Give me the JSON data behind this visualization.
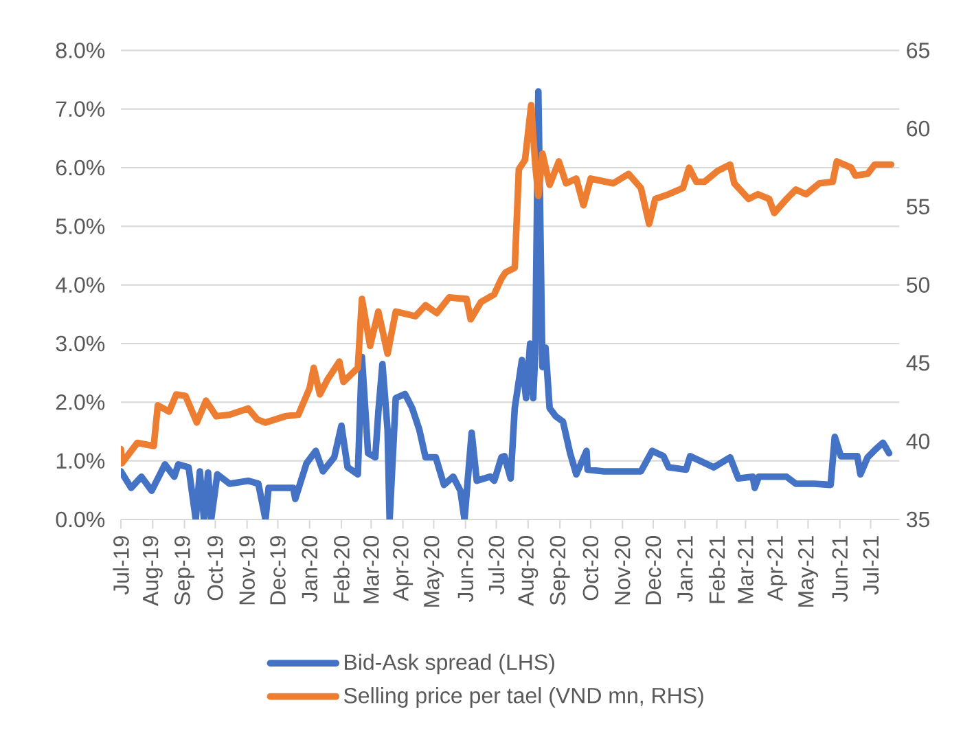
{
  "chart_data": {
    "type": "line",
    "xlim": [
      "2019-07-01",
      "2021-07-29"
    ],
    "xticks": [
      {
        "value": "2019-07-01",
        "label": "Jul-19"
      },
      {
        "value": "2019-08-01",
        "label": "Aug-19"
      },
      {
        "value": "2019-09-01",
        "label": "Sep-19"
      },
      {
        "value": "2019-10-01",
        "label": "Oct-19"
      },
      {
        "value": "2019-11-01",
        "label": "Nov-19"
      },
      {
        "value": "2019-12-01",
        "label": "Dec-19"
      },
      {
        "value": "2020-01-01",
        "label": "Jan-20"
      },
      {
        "value": "2020-02-01",
        "label": "Feb-20"
      },
      {
        "value": "2020-03-01",
        "label": "Mar-20"
      },
      {
        "value": "2020-04-01",
        "label": "Apr-20"
      },
      {
        "value": "2020-05-01",
        "label": "May-20"
      },
      {
        "value": "2020-06-01",
        "label": "Jun-20"
      },
      {
        "value": "2020-07-01",
        "label": "Jul-20"
      },
      {
        "value": "2020-08-01",
        "label": "Aug-20"
      },
      {
        "value": "2020-09-01",
        "label": "Sep-20"
      },
      {
        "value": "2020-10-01",
        "label": "Oct-20"
      },
      {
        "value": "2020-11-01",
        "label": "Nov-20"
      },
      {
        "value": "2020-12-01",
        "label": "Dec-20"
      },
      {
        "value": "2021-01-01",
        "label": "Jan-21"
      },
      {
        "value": "2021-02-01",
        "label": "Feb-21"
      },
      {
        "value": "2021-03-01",
        "label": "Mar-21"
      },
      {
        "value": "2021-04-01",
        "label": "Apr-21"
      },
      {
        "value": "2021-05-01",
        "label": "May-21"
      },
      {
        "value": "2021-06-01",
        "label": "Jun-21"
      },
      {
        "value": "2021-07-01",
        "label": "Jul-21"
      }
    ],
    "ylim": [
      0,
      8
    ],
    "yticks": [
      {
        "value": 0,
        "label": "0.0%"
      },
      {
        "value": 1,
        "label": "1.0%"
      },
      {
        "value": 2,
        "label": "2.0%"
      },
      {
        "value": 3,
        "label": "3.0%"
      },
      {
        "value": 4,
        "label": "4.0%"
      },
      {
        "value": 5,
        "label": "5.0%"
      },
      {
        "value": 6,
        "label": "6.0%"
      },
      {
        "value": 7,
        "label": "7.0%"
      },
      {
        "value": 8,
        "label": "8.0%"
      }
    ],
    "y2lim": [
      35,
      65
    ],
    "y2ticks": [
      35,
      40,
      45,
      50,
      55,
      60,
      65
    ],
    "grid": "y",
    "legend": "bottom",
    "series": [
      {
        "name": "Bid-Ask spread (LHS)",
        "color": "#4472c4",
        "axis": "y",
        "x": [
          "2019-07-01",
          "2019-07-11",
          "2019-07-21",
          "2019-07-31",
          "2019-08-13",
          "2019-08-22",
          "2019-08-26",
          "2019-09-05",
          "2019-09-12",
          "2019-09-16",
          "2019-09-20",
          "2019-09-24",
          "2019-09-27",
          "2019-10-03",
          "2019-10-15",
          "2019-11-02",
          "2019-11-12",
          "2019-11-19",
          "2019-11-22",
          "2019-12-16",
          "2019-12-18",
          "2019-12-29",
          "2020-01-07",
          "2020-01-14",
          "2020-01-25",
          "2020-02-01",
          "2020-02-07",
          "2020-02-17",
          "2020-02-21",
          "2020-02-27",
          "2020-03-05",
          "2020-03-08",
          "2020-03-12",
          "2020-03-17",
          "2020-03-19",
          "2020-03-25",
          "2020-04-03",
          "2020-04-10",
          "2020-04-17",
          "2020-04-23",
          "2020-05-03",
          "2020-05-11",
          "2020-05-20",
          "2020-05-27",
          "2020-05-31",
          "2020-06-07",
          "2020-06-12",
          "2020-06-25",
          "2020-06-29",
          "2020-07-06",
          "2020-07-09",
          "2020-07-15",
          "2020-07-19",
          "2020-07-26",
          "2020-07-30",
          "2020-08-03",
          "2020-08-06",
          "2020-08-08",
          "2020-08-11",
          "2020-08-15",
          "2020-08-18",
          "2020-08-22",
          "2020-08-28",
          "2020-09-04",
          "2020-09-11",
          "2020-09-17",
          "2020-09-27",
          "2020-09-28",
          "2020-10-14",
          "2020-10-23",
          "2020-11-19",
          "2020-11-30",
          "2020-12-11",
          "2020-12-16",
          "2021-01-02",
          "2021-01-06",
          "2021-01-29",
          "2021-02-14",
          "2021-02-22",
          "2021-03-08",
          "2021-03-10",
          "2021-03-14",
          "2021-04-10",
          "2021-04-19",
          "2021-05-07",
          "2021-05-23",
          "2021-05-27",
          "2021-06-02",
          "2021-06-18",
          "2021-06-21",
          "2021-06-28",
          "2021-07-06",
          "2021-07-13",
          "2021-07-19"
        ],
        "values": [
          0.82,
          0.54,
          0.73,
          0.49,
          0.94,
          0.73,
          0.94,
          0.89,
          0,
          0.82,
          0,
          0.8,
          0,
          0.77,
          0.61,
          0.66,
          0.61,
          0,
          0.54,
          0.54,
          0.35,
          0.96,
          1.17,
          0.82,
          1.06,
          1.6,
          0.89,
          0.77,
          2.77,
          1.13,
          1.06,
          1.83,
          2.65,
          1.53,
          0,
          2.07,
          2.14,
          1.9,
          1.53,
          1.06,
          1.06,
          0.59,
          0.73,
          0.49,
          0,
          1.48,
          0.66,
          0.73,
          0.66,
          1.06,
          1.08,
          0.7,
          1.9,
          2.72,
          2.07,
          3.0,
          2.07,
          2.84,
          7.3,
          2.6,
          2.93,
          1.9,
          1.76,
          1.67,
          1.13,
          0.77,
          1.17,
          0.85,
          0.82,
          0.82,
          0.82,
          1.17,
          1.08,
          0.89,
          0.85,
          1.08,
          0.89,
          1.06,
          0.7,
          0.73,
          0.54,
          0.73,
          0.73,
          0.61,
          0.61,
          0.59,
          1.41,
          1.08,
          1.08,
          0.77,
          1.06,
          1.2,
          1.31,
          1.13
        ]
      },
      {
        "name": "Selling price per tael (VND mn, RHS)",
        "color": "#ed7d31",
        "axis": "y2",
        "x": [
          "2019-07-01",
          "2019-07-02",
          "2019-07-17",
          "2019-08-02",
          "2019-08-06",
          "2019-08-17",
          "2019-08-24",
          "2019-09-02",
          "2019-09-13",
          "2019-09-22",
          "2019-10-02",
          "2019-10-15",
          "2019-11-02",
          "2019-11-11",
          "2019-11-19",
          "2019-12-08",
          "2019-12-21",
          "2020-01-01",
          "2020-01-05",
          "2020-01-11",
          "2020-01-18",
          "2020-01-30",
          "2020-02-03",
          "2020-02-17",
          "2020-02-21",
          "2020-02-29",
          "2020-03-08",
          "2020-03-17",
          "2020-03-25",
          "2020-04-13",
          "2020-04-23",
          "2020-05-04",
          "2020-05-16",
          "2020-06-02",
          "2020-06-06",
          "2020-06-16",
          "2020-06-29",
          "2020-07-06",
          "2020-07-10",
          "2020-07-19",
          "2020-07-23",
          "2020-07-29",
          "2020-08-04",
          "2020-08-08",
          "2020-08-11",
          "2020-08-15",
          "2020-08-22",
          "2020-08-31",
          "2020-09-07",
          "2020-09-17",
          "2020-09-24",
          "2020-10-01",
          "2020-10-23",
          "2020-11-07",
          "2020-11-19",
          "2020-11-27",
          "2020-12-03",
          "2020-12-16",
          "2020-12-30",
          "2021-01-05",
          "2021-01-12",
          "2021-01-20",
          "2021-02-02",
          "2021-02-14",
          "2021-02-18",
          "2021-03-04",
          "2021-03-13",
          "2021-03-24",
          "2021-03-29",
          "2021-04-10",
          "2021-04-19",
          "2021-04-29",
          "2021-05-12",
          "2021-05-25",
          "2021-05-29",
          "2021-06-12",
          "2021-06-16",
          "2021-06-28",
          "2021-07-05",
          "2021-07-21"
        ],
        "values": [
          39.5,
          38.6,
          39.9,
          39.7,
          42.3,
          41.9,
          43.0,
          42.9,
          41.2,
          42.6,
          41.6,
          41.7,
          42.1,
          41.4,
          41.2,
          41.6,
          41.7,
          43.4,
          44.7,
          43.0,
          43.9,
          45.1,
          43.8,
          44.7,
          49.1,
          46.1,
          48.3,
          45.6,
          48.3,
          48.0,
          48.7,
          48.2,
          49.2,
          49.1,
          47.8,
          48.9,
          49.4,
          50.4,
          50.8,
          51.1,
          57.4,
          58.0,
          61.5,
          57.7,
          55.7,
          58.4,
          56.4,
          57.9,
          56.5,
          56.8,
          55.1,
          56.8,
          56.5,
          57.1,
          56.2,
          53.9,
          55.5,
          55.8,
          56.2,
          57.5,
          56.6,
          56.6,
          57.3,
          57.7,
          56.5,
          55.5,
          55.8,
          55.5,
          54.6,
          55.5,
          56.1,
          55.8,
          56.5,
          56.6,
          57.9,
          57.5,
          57.0,
          57.1,
          57.7,
          57.7
        ]
      }
    ]
  }
}
